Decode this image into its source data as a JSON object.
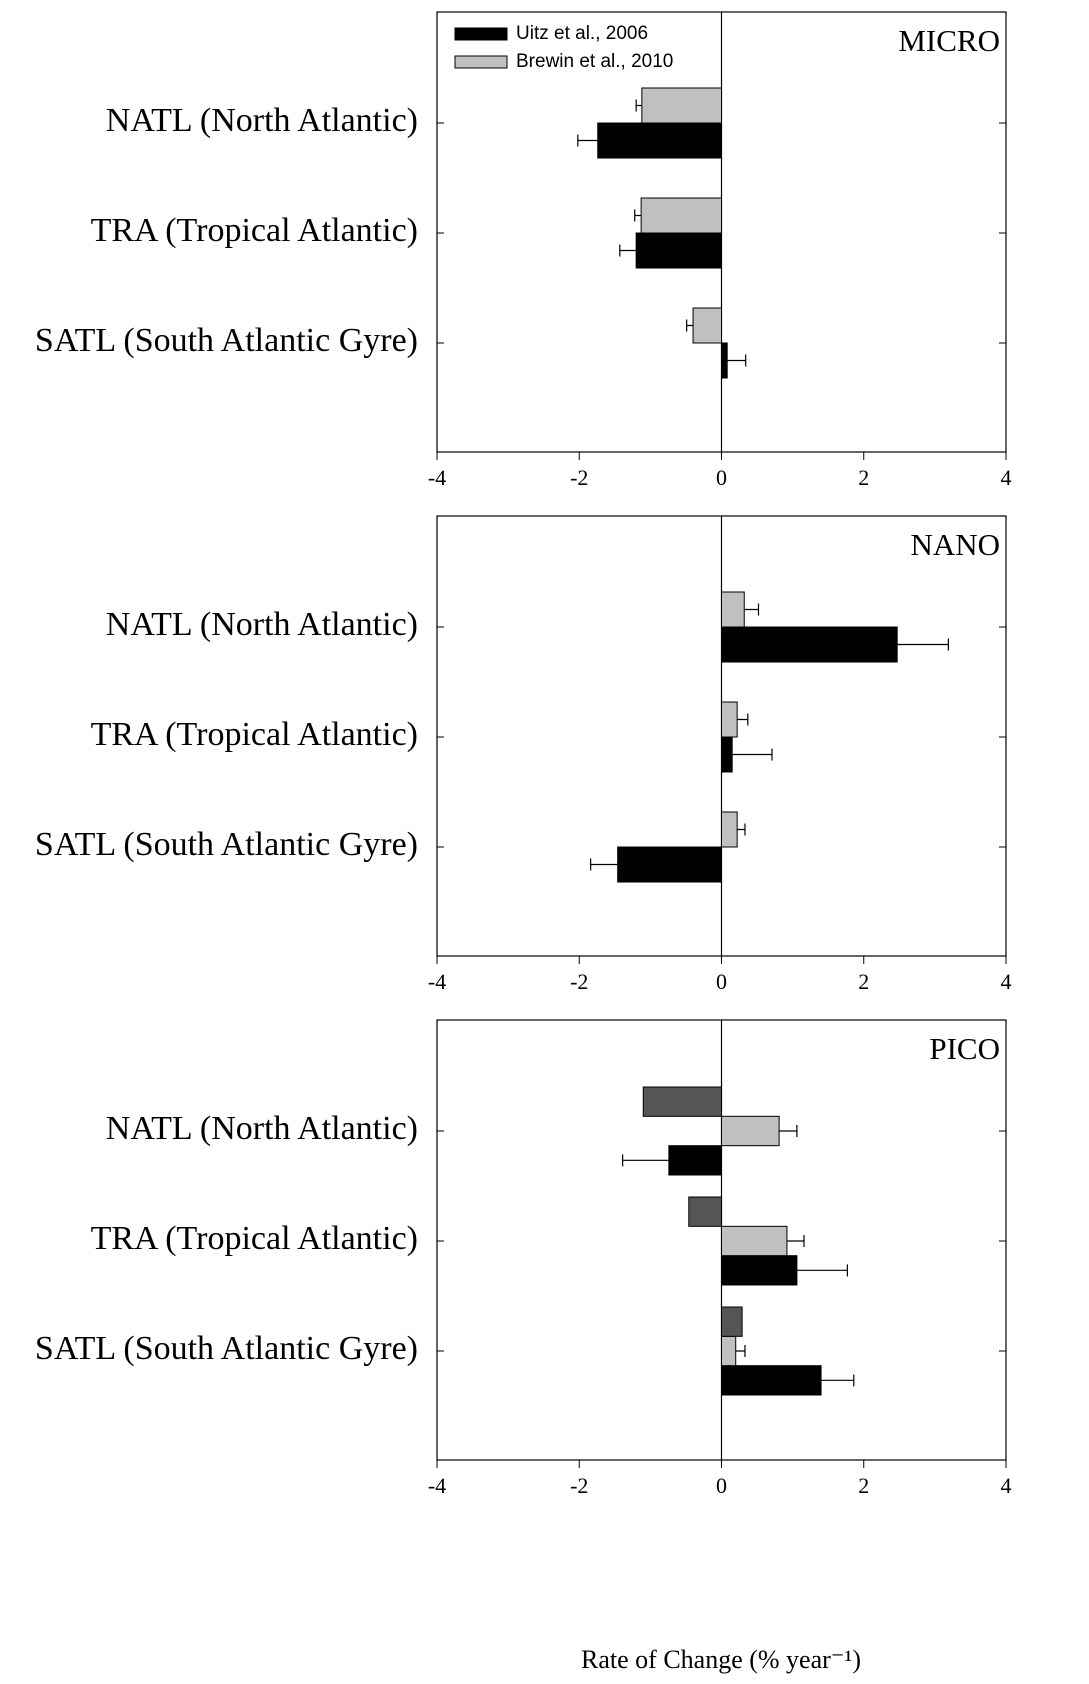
{
  "chart_data": [
    {
      "type": "bar",
      "orientation": "horizontal",
      "title": "MICRO",
      "legend": "upper left",
      "categories": [
        "NATL (North Atlantic)",
        "TRA (Tropical Atlantic)",
        "SATL (South Atlantic Gyre)"
      ],
      "series": [
        {
          "name": "Uitz et al., 2006",
          "color": "#000000",
          "values": [
            -1.74,
            -1.2,
            0.08
          ],
          "errors": [
            0.28,
            0.23,
            0.26
          ]
        },
        {
          "name": "Brewin et al., 2010",
          "color": "#c0c0c0",
          "values": [
            -1.12,
            -1.13,
            -0.4
          ],
          "errors": [
            0.08,
            0.09,
            0.09
          ]
        }
      ],
      "xlim": [
        -4,
        4
      ],
      "xticks": [
        -4,
        -2,
        0,
        2,
        4
      ]
    },
    {
      "type": "bar",
      "orientation": "horizontal",
      "title": "NANO",
      "categories": [
        "NATL (North Atlantic)",
        "TRA (Tropical Atlantic)",
        "SATL (South Atlantic Gyre)"
      ],
      "series": [
        {
          "color": "#000000",
          "values": [
            2.47,
            0.15,
            -1.46
          ],
          "errors": [
            0.72,
            0.56,
            0.38
          ]
        },
        {
          "color": "#c0c0c0",
          "values": [
            0.32,
            0.22,
            0.22
          ],
          "errors": [
            0.2,
            0.15,
            0.11
          ]
        }
      ],
      "xlim": [
        -4,
        4
      ],
      "xticks": [
        -4,
        -2,
        0,
        2,
        4
      ]
    },
    {
      "type": "bar",
      "orientation": "horizontal",
      "title": "PICO",
      "xlabel": "Rate of Change (% year⁻¹)",
      "categories": [
        "NATL (North Atlantic)",
        "TRA (Tropical Atlantic)",
        "SATL (South Atlantic Gyre)"
      ],
      "series": [
        {
          "color": "#000000",
          "values": [
            -0.74,
            1.06,
            1.4
          ],
          "errors": [
            0.65,
            0.71,
            0.46
          ]
        },
        {
          "color": "#c0c0c0",
          "values": [
            0.81,
            0.92,
            0.2
          ],
          "errors": [
            0.25,
            0.24,
            0.13
          ]
        },
        {
          "color": "#555555",
          "values": [
            -1.1,
            -0.46,
            0.29
          ]
        }
      ],
      "xlim": [
        -4,
        4
      ],
      "xticks": [
        -4,
        -2,
        0,
        2,
        4
      ]
    }
  ]
}
